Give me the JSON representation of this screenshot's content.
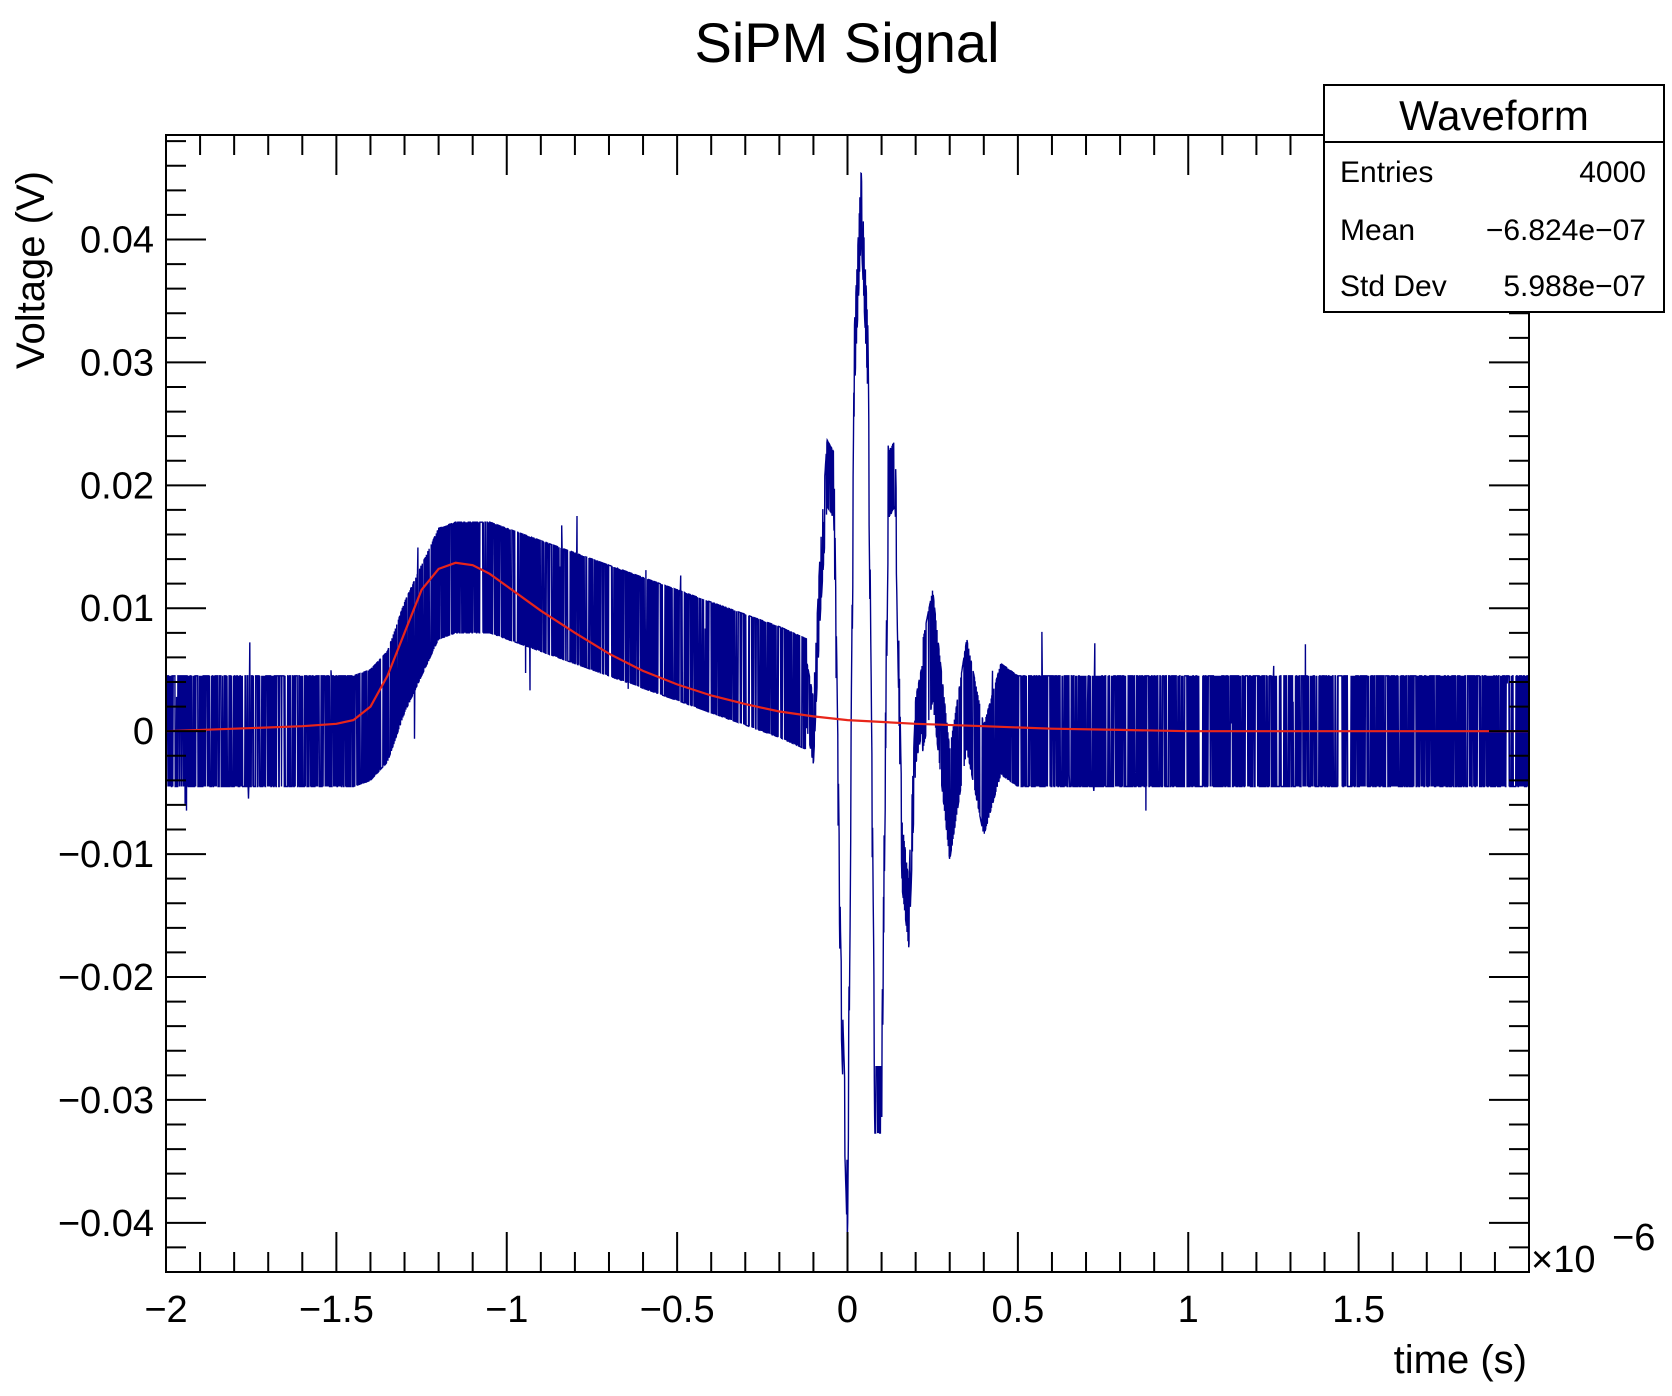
{
  "chart_data": {
    "type": "line",
    "title": "SiPM Signal",
    "xlabel": "time (s)",
    "ylabel": "Voltage (V)",
    "x_multiplier": "×10",
    "x_exponent": "−6",
    "xlim": [
      -2.0,
      2.0
    ],
    "ylim": [
      -0.044,
      0.0485
    ],
    "x_ticks": [
      -2,
      -1.5,
      -1,
      -0.5,
      0,
      0.5,
      1,
      1.5
    ],
    "x_tick_labels": [
      "−2",
      "−1.5",
      "−1",
      "−0.5",
      "0",
      "0.5",
      "1",
      "1.5"
    ],
    "y_ticks": [
      -0.04,
      -0.03,
      -0.02,
      -0.01,
      0,
      0.01,
      0.02,
      0.03,
      0.04
    ],
    "y_tick_labels": [
      "−0.04",
      "−0.03",
      "−0.02",
      "−0.01",
      "0",
      "0.01",
      "0.02",
      "0.03",
      "0.04"
    ],
    "grid": false,
    "series": [
      {
        "color": "#00008b",
        "x": [
          -2.0,
          -1.8,
          -1.6,
          -1.45,
          -1.4,
          -1.35,
          -1.3,
          -1.25,
          -1.2,
          -1.15,
          -1.1,
          -1.05,
          -1.0,
          -0.9,
          -0.8,
          -0.7,
          -0.6,
          -0.5,
          -0.4,
          -0.3,
          -0.2,
          -0.12,
          -0.1,
          -0.08,
          -0.06,
          -0.04,
          -0.02,
          0.0,
          0.02,
          0.04,
          0.06,
          0.08,
          0.1,
          0.12,
          0.14,
          0.16,
          0.18,
          0.2,
          0.25,
          0.3,
          0.35,
          0.4,
          0.45,
          0.5,
          0.6,
          0.8,
          1.0,
          1.2,
          1.4,
          1.6,
          1.8,
          2.0
        ],
        "y": [
          0.0,
          0.0,
          0.0,
          0.0,
          0.0005,
          0.002,
          0.006,
          0.009,
          0.012,
          0.0125,
          0.0125,
          0.0125,
          0.012,
          0.011,
          0.01,
          0.009,
          0.008,
          0.007,
          0.006,
          0.005,
          0.004,
          0.003,
          0.0,
          0.012,
          0.021,
          0.02,
          -0.02,
          -0.039,
          0.03,
          0.043,
          0.03,
          -0.03,
          -0.03,
          0.02,
          0.021,
          -0.01,
          -0.015,
          0.0,
          0.007,
          -0.006,
          0.003,
          -0.004,
          0.001,
          0.0,
          0.0,
          0.0,
          0.0,
          0.0,
          0.0,
          0.0,
          0.0,
          0.0
        ],
        "noise_band": 0.0045
      },
      {
        "color": "#e8251a",
        "x": [
          -2.0,
          -1.8,
          -1.6,
          -1.5,
          -1.45,
          -1.4,
          -1.35,
          -1.3,
          -1.25,
          -1.2,
          -1.15,
          -1.1,
          -1.05,
          -1.0,
          -0.9,
          -0.8,
          -0.7,
          -0.6,
          -0.5,
          -0.4,
          -0.3,
          -0.2,
          -0.1,
          0.0,
          0.2,
          0.4,
          0.6,
          0.8,
          1.0,
          1.5,
          2.0
        ],
        "y": [
          0.0,
          0.0002,
          0.0004,
          0.0006,
          0.0009,
          0.002,
          0.0045,
          0.008,
          0.0115,
          0.0132,
          0.0137,
          0.0135,
          0.0128,
          0.0118,
          0.0098,
          0.008,
          0.0063,
          0.0049,
          0.0038,
          0.0029,
          0.0022,
          0.0016,
          0.0012,
          0.0009,
          0.0006,
          0.0004,
          0.0002,
          0.0001,
          0.0,
          0.0,
          0.0
        ]
      }
    ]
  },
  "stats_box": {
    "title": "Waveform",
    "rows": [
      {
        "label": "Entries",
        "value": "4000"
      },
      {
        "label": "Mean",
        "value": "−6.824e−07"
      },
      {
        "label": "Std Dev",
        "value": "5.988e−07"
      }
    ]
  }
}
